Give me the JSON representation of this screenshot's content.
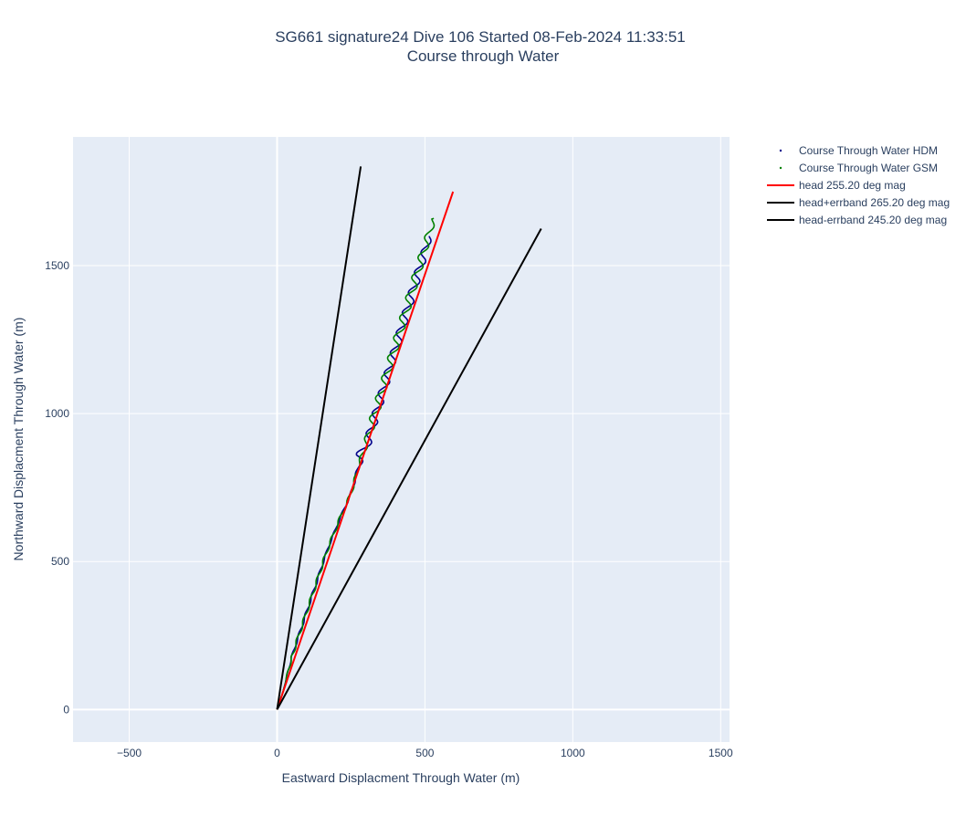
{
  "chart_data": {
    "type": "line",
    "title": "SG661 signature24 Dive 106 Started 08-Feb-2024 11:33:51",
    "subtitle": "Course through Water",
    "xlabel": "Eastward Displacment Through Water (m)",
    "ylabel": "Northward Displacment Through Water (m)",
    "xlim": [
      -690,
      1530
    ],
    "ylim": [
      -110,
      1935
    ],
    "xticks": [
      -500,
      0,
      500,
      1000,
      1500
    ],
    "xtick_labels": [
      "−500",
      "0",
      "500",
      "1000",
      "1500"
    ],
    "yticks": [
      0,
      500,
      1000,
      1500
    ],
    "ytick_labels": [
      "0",
      "500",
      "1000",
      "1500"
    ],
    "grid": true,
    "legend_position": "right",
    "series": [
      {
        "name": "Course Through Water HDM",
        "color": "#00008b",
        "kind": "wiggle",
        "points": [
          [
            0,
            0
          ],
          [
            20,
            60
          ],
          [
            50,
            180
          ],
          [
            90,
            300
          ],
          [
            130,
            420
          ],
          [
            170,
            540
          ],
          [
            210,
            640
          ],
          [
            250,
            730
          ],
          [
            275,
            820
          ],
          [
            285,
            860
          ],
          [
            305,
            900
          ],
          [
            335,
            1000
          ],
          [
            365,
            1100
          ],
          [
            395,
            1200
          ],
          [
            425,
            1300
          ],
          [
            455,
            1400
          ],
          [
            485,
            1500
          ],
          [
            515,
            1600
          ]
        ],
        "wiggle": [
          [
            0,
            0
          ],
          [
            0,
            0
          ],
          [
            2,
            0
          ],
          [
            3,
            0
          ],
          [
            3,
            0
          ],
          [
            2,
            0
          ],
          [
            2,
            0
          ],
          [
            3,
            0
          ],
          [
            4,
            0
          ],
          [
            20,
            0
          ],
          [
            14,
            0
          ],
          [
            14,
            0
          ],
          [
            14,
            0
          ],
          [
            14,
            0
          ],
          [
            14,
            0
          ],
          [
            14,
            0
          ],
          [
            14,
            0
          ],
          [
            10,
            0
          ]
        ]
      },
      {
        "name": "Course Through Water GSM",
        "color": "#008000",
        "kind": "wiggle",
        "points": [
          [
            0,
            0
          ],
          [
            20,
            60
          ],
          [
            50,
            180
          ],
          [
            90,
            300
          ],
          [
            130,
            420
          ],
          [
            170,
            540
          ],
          [
            210,
            640
          ],
          [
            250,
            730
          ],
          [
            275,
            820
          ],
          [
            295,
            880
          ],
          [
            325,
            980
          ],
          [
            355,
            1080
          ],
          [
            385,
            1180
          ],
          [
            415,
            1280
          ],
          [
            445,
            1380
          ],
          [
            475,
            1480
          ],
          [
            505,
            1580
          ],
          [
            530,
            1660
          ]
        ],
        "wiggle": [
          [
            0,
            0
          ],
          [
            0,
            0
          ],
          [
            4,
            1
          ],
          [
            4,
            1
          ],
          [
            4,
            1
          ],
          [
            4,
            1
          ],
          [
            4,
            1
          ],
          [
            4,
            1
          ],
          [
            4,
            1
          ],
          [
            8,
            1
          ],
          [
            14,
            1
          ],
          [
            14,
            1
          ],
          [
            14,
            1
          ],
          [
            14,
            1
          ],
          [
            14,
            1
          ],
          [
            14,
            1
          ],
          [
            12,
            1
          ],
          [
            8,
            1
          ]
        ]
      },
      {
        "name": "head 255.20 deg mag",
        "color": "#ff0000",
        "kind": "line",
        "points": [
          [
            0,
            0
          ],
          [
            595,
            1750
          ]
        ]
      },
      {
        "name": "head+errband 265.20 deg mag",
        "color": "#000000",
        "kind": "line",
        "points": [
          [
            0,
            0
          ],
          [
            283,
            1835
          ]
        ]
      },
      {
        "name": "head-errband 245.20 deg mag",
        "color": "#000000",
        "kind": "line",
        "points": [
          [
            0,
            0
          ],
          [
            893,
            1625
          ]
        ]
      }
    ]
  },
  "legend": {
    "items": [
      {
        "label": "Course Through Water HDM",
        "color": "#00008b",
        "style": "dot"
      },
      {
        "label": "Course Through Water GSM",
        "color": "#008000",
        "style": "dot"
      },
      {
        "label": "head 255.20 deg mag",
        "color": "#ff0000",
        "style": "line"
      },
      {
        "label": "head+errband 265.20 deg mag",
        "color": "#000000",
        "style": "line"
      },
      {
        "label": "head-errband 245.20 deg mag",
        "color": "#000000",
        "style": "line"
      }
    ]
  },
  "colors": {
    "plot_background": "#e5ecf6",
    "grid": "#ffffff",
    "text": "#2a3f5f"
  }
}
